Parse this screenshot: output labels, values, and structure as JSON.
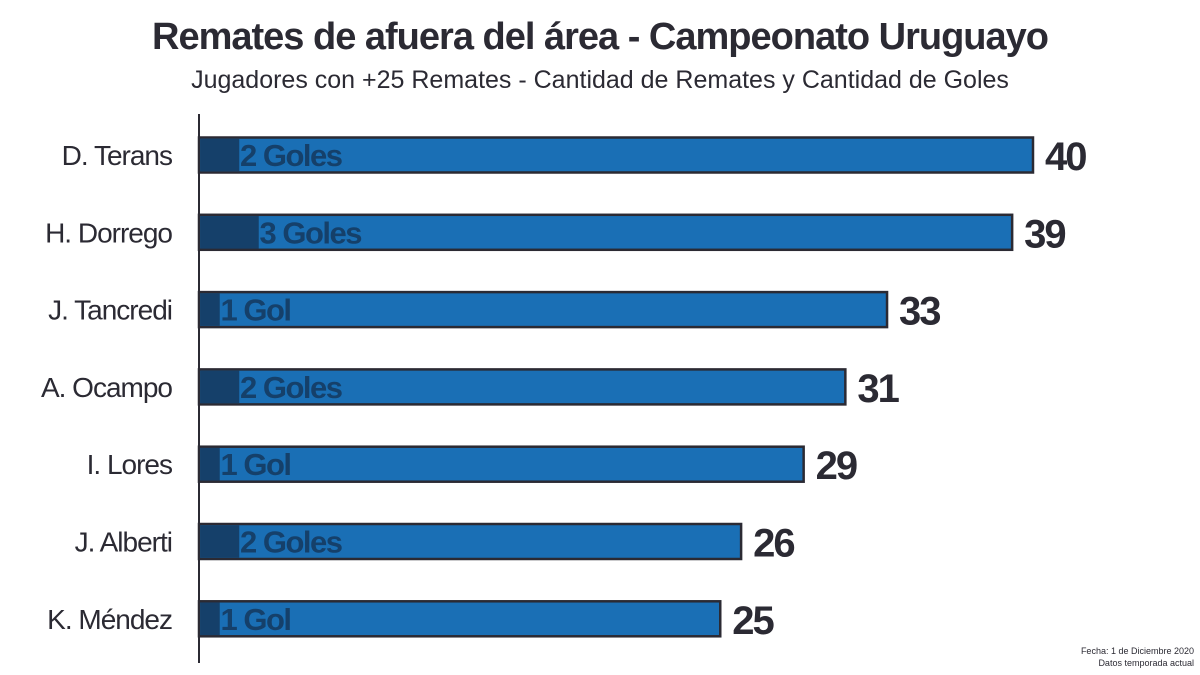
{
  "chart_data": {
    "type": "bar",
    "orientation": "horizontal",
    "title": "Remates de afuera del área - Campeonato Uruguayo",
    "subtitle": "Jugadores con +25 Remates - Cantidad de Remates y Cantidad de Goles",
    "categories": [
      "D. Terans",
      "H. Dorrego",
      "J. Tancredi",
      "A. Ocampo",
      "I. Lores",
      "J. Alberti",
      "K. Méndez"
    ],
    "series": [
      {
        "values": [
          40,
          39,
          33,
          31,
          29,
          26,
          25
        ]
      },
      {
        "values": [
          2,
          3,
          1,
          2,
          1,
          2,
          1
        ]
      }
    ],
    "goal_labels": [
      "2 Goles",
      "3 Goles",
      "1 Gol",
      "2 Goles",
      "1 Gol",
      "2 Goles",
      "1 Gol"
    ],
    "xlim": [
      0,
      40
    ],
    "grid": false,
    "colors": {
      "remates": "#1a6fb5",
      "goles": "#15406a",
      "outline": "#2b2a33",
      "text": "#2b2a33"
    }
  },
  "footnote": {
    "line1": "Fecha: 1 de Diciembre 2020",
    "line2": "Datos temporada actual"
  }
}
